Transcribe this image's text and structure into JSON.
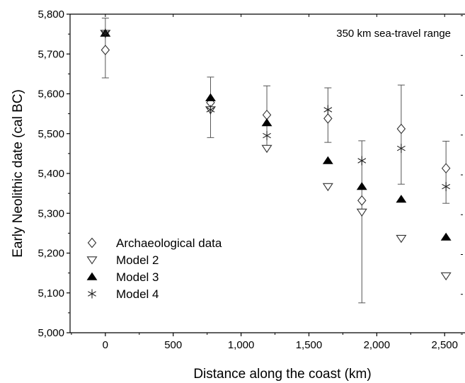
{
  "chart_data": {
    "type": "scatter",
    "title": "",
    "xlabel": "Distance along the coast (km)",
    "ylabel": "Early Neolithic date (cal BC)",
    "xlim": [
      -260,
      2650
    ],
    "ylim": [
      5000,
      5800
    ],
    "x_ticks": [
      0,
      500,
      1000,
      1500,
      2000,
      2500
    ],
    "x_tick_labels": [
      "0",
      "500",
      "1,000",
      "1,500",
      "2,000",
      "2,500"
    ],
    "y_ticks": [
      5000,
      5100,
      5200,
      5300,
      5400,
      5500,
      5600,
      5700,
      5800
    ],
    "y_tick_labels": [
      "5,000",
      "5,100",
      "5,200",
      "5,300",
      "5,400",
      "5,500",
      "5,600",
      "5,700",
      "5,800"
    ],
    "grid": false,
    "legend_position": "bottom-left",
    "annotation": "350 km sea-travel range",
    "series": [
      {
        "name": "Archaeological data",
        "marker": "diamond-open",
        "x": [
          0,
          775,
          1190,
          1640,
          1890,
          2180,
          2510
        ],
        "y": [
          5710,
          5578,
          5547,
          5538,
          5332,
          5512,
          5413
        ],
        "err_low": [
          5640,
          5490,
          5470,
          5478,
          5075,
          5373,
          5325
        ],
        "err_high": [
          5790,
          5642,
          5620,
          5615,
          5482,
          5622,
          5481
        ]
      },
      {
        "name": "Model 2",
        "marker": "triangle-down-open",
        "x": [
          0,
          775,
          1190,
          1640,
          1890,
          2180,
          2510
        ],
        "y": [
          5752,
          5560,
          5463,
          5367,
          5303,
          5237,
          5143
        ]
      },
      {
        "name": "Model 3",
        "marker": "triangle-up-filled",
        "x": [
          0,
          775,
          1190,
          1640,
          1890,
          2180,
          2510
        ],
        "y": [
          5752,
          5590,
          5527,
          5432,
          5367,
          5335,
          5240
        ]
      },
      {
        "name": "Model 4",
        "marker": "asterisk",
        "x": [
          0,
          775,
          1190,
          1640,
          1890,
          2180,
          2510
        ],
        "y": [
          5752,
          5560,
          5495,
          5560,
          5432,
          5463,
          5367
        ]
      }
    ]
  }
}
